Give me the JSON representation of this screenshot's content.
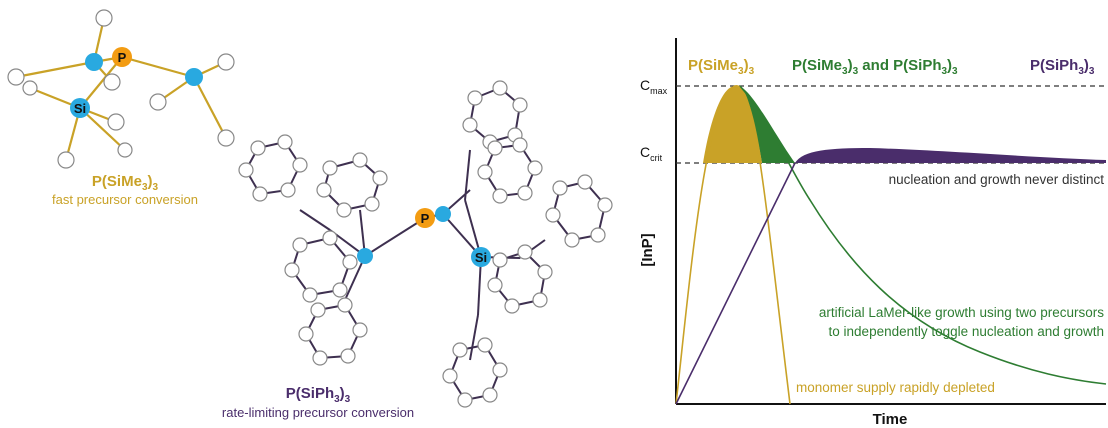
{
  "colors": {
    "gold": "#c9a227",
    "green": "#2e7d32",
    "purple": "#4a2d6b",
    "blue": "#29a9e0",
    "orange": "#f39c12",
    "bond_gold": "#c9a227",
    "bond_dark": "#3e3050",
    "black": "#111111",
    "atom_fill": "#ffffff",
    "atom_stroke": "#888888"
  },
  "molecule_small": {
    "name_main": "P(SiMe",
    "name_sub1": "3",
    "name_close": ")",
    "name_sub2": "3",
    "caption": "fast precursor conversion",
    "atom_p": "P",
    "atom_si": "Si"
  },
  "molecule_large": {
    "name_main": "P(SiPh",
    "name_sub1": "3",
    "name_close": ")",
    "name_sub2": "3",
    "caption": "rate-limiting precursor conversion",
    "atom_p": "P",
    "atom_si": "Si"
  },
  "chart": {
    "ylabel": "[InP]",
    "xlabel": "Time",
    "cmax_main": "C",
    "cmax_sub": "max",
    "ccrit_main": "C",
    "ccrit_sub": "crit",
    "legend_gold": {
      "main": "P(SiMe",
      "s1": "3",
      "close": ")",
      "s2": "3"
    },
    "legend_green": {
      "p1": "P(SiMe",
      "s1": "3",
      "p2": ")",
      "s2": "3",
      "p3": " and P(SiPh",
      "s3": "3",
      "p4": ")",
      "s4": "3"
    },
    "legend_purple": {
      "main": "P(SiPh",
      "s1": "3",
      "close": ")",
      "s2": "3"
    },
    "annotation_nucleation": "nucleation and growth never distinct",
    "annotation_lamer_1": "artificial LaMer-like growth using two precursors",
    "annotation_lamer_2": "to independently toggle nucleation and growth",
    "annotation_monomer": "monomer supply rapidly depleted"
  }
}
